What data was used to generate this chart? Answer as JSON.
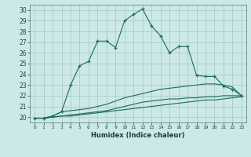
{
  "xlabel": "Humidex (Indice chaleur)",
  "ylabel": "",
  "xlim": [
    -0.5,
    23.5
  ],
  "ylim": [
    19.5,
    30.5
  ],
  "bg_color": "#cce8e8",
  "grid_color": "#aacccc",
  "line_color": "#1a6b5a",
  "yticks": [
    20,
    21,
    22,
    23,
    24,
    25,
    26,
    27,
    28,
    29,
    30
  ],
  "xticks": [
    0,
    1,
    2,
    3,
    4,
    5,
    6,
    7,
    8,
    9,
    10,
    11,
    12,
    13,
    14,
    15,
    16,
    17,
    18,
    19,
    20,
    21,
    22,
    23
  ],
  "series1": {
    "x": [
      0,
      1,
      2,
      3,
      4,
      5,
      6,
      7,
      8,
      9,
      10,
      11,
      12,
      13,
      14,
      15,
      16,
      17,
      18,
      19,
      20,
      21,
      22,
      23
    ],
    "y": [
      19.9,
      19.9,
      20.1,
      20.5,
      23.0,
      24.8,
      25.2,
      27.1,
      27.1,
      26.5,
      29.0,
      29.6,
      30.1,
      28.5,
      27.6,
      26.0,
      26.6,
      26.6,
      23.9,
      23.8,
      23.8,
      22.9,
      22.6,
      22.0
    ],
    "marker": "+"
  },
  "series2": {
    "x": [
      0,
      1,
      2,
      3,
      4,
      5,
      6,
      7,
      8,
      9,
      10,
      11,
      12,
      13,
      14,
      15,
      16,
      17,
      18,
      19,
      20,
      21,
      22,
      23
    ],
    "y": [
      19.9,
      19.9,
      20.1,
      20.5,
      20.6,
      20.7,
      20.8,
      21.0,
      21.2,
      21.5,
      21.8,
      22.0,
      22.2,
      22.4,
      22.6,
      22.7,
      22.8,
      22.9,
      23.0,
      23.1,
      23.1,
      23.0,
      22.8,
      22.0
    ]
  },
  "series3": {
    "x": [
      0,
      1,
      2,
      3,
      4,
      5,
      6,
      7,
      8,
      9,
      10,
      11,
      12,
      13,
      14,
      15,
      16,
      17,
      18,
      19,
      20,
      21,
      22,
      23
    ],
    "y": [
      19.9,
      19.9,
      20.0,
      20.1,
      20.2,
      20.3,
      20.4,
      20.5,
      20.6,
      20.8,
      21.0,
      21.2,
      21.4,
      21.5,
      21.6,
      21.7,
      21.7,
      21.8,
      21.8,
      21.9,
      21.9,
      22.0,
      22.0,
      22.0
    ]
  },
  "series4": {
    "x": [
      0,
      1,
      2,
      3,
      4,
      5,
      6,
      7,
      8,
      9,
      10,
      11,
      12,
      13,
      14,
      15,
      16,
      17,
      18,
      19,
      20,
      21,
      22,
      23
    ],
    "y": [
      19.9,
      19.9,
      20.0,
      20.1,
      20.1,
      20.2,
      20.3,
      20.4,
      20.5,
      20.6,
      20.7,
      20.8,
      20.9,
      21.0,
      21.1,
      21.2,
      21.3,
      21.4,
      21.5,
      21.6,
      21.6,
      21.7,
      21.8,
      21.9
    ]
  }
}
